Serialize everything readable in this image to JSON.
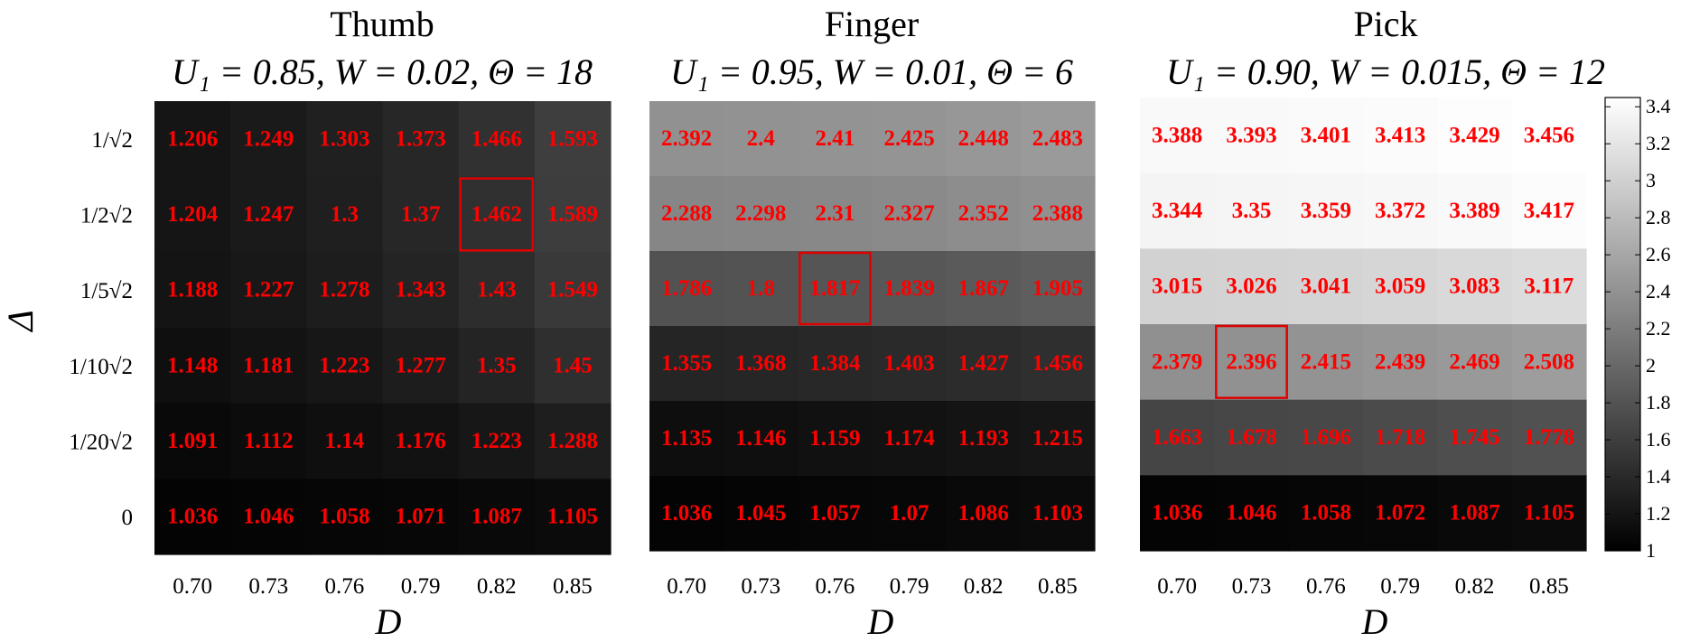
{
  "chart_data": [
    {
      "type": "heatmap",
      "title": "Thumb",
      "subtitle": "U₁ = 0.85, W = 0.02, Θ = 18",
      "xlabel": "D",
      "ylabel": "Δ",
      "x": [
        "0.70",
        "0.73",
        "0.76",
        "0.79",
        "0.82",
        "0.85"
      ],
      "y": [
        "1/√2",
        "1/2√2",
        "1/5√2",
        "1/10√2",
        "1/20√2",
        "0"
      ],
      "values": [
        [
          1.206,
          1.249,
          1.303,
          1.373,
          1.466,
          1.593
        ],
        [
          1.204,
          1.247,
          1.3,
          1.37,
          1.462,
          1.589
        ],
        [
          1.188,
          1.227,
          1.278,
          1.343,
          1.43,
          1.549
        ],
        [
          1.148,
          1.181,
          1.223,
          1.277,
          1.35,
          1.45
        ],
        [
          1.091,
          1.112,
          1.14,
          1.176,
          1.223,
          1.288
        ],
        [
          1.036,
          1.046,
          1.058,
          1.071,
          1.087,
          1.105
        ]
      ],
      "value_labels": [
        [
          "1.206",
          "1.249",
          "1.303",
          "1.373",
          "1.466",
          "1.593"
        ],
        [
          "1.204",
          "1.247",
          "1.3",
          "1.37",
          "1.462",
          "1.589"
        ],
        [
          "1.188",
          "1.227",
          "1.278",
          "1.343",
          "1.43",
          "1.549"
        ],
        [
          "1.148",
          "1.181",
          "1.223",
          "1.277",
          "1.35",
          "1.45"
        ],
        [
          "1.091",
          "1.112",
          "1.14",
          "1.176",
          "1.223",
          "1.288"
        ],
        [
          "1.036",
          "1.046",
          "1.058",
          "1.071",
          "1.087",
          "1.105"
        ]
      ],
      "highlight": {
        "row": 1,
        "col": 4
      }
    },
    {
      "type": "heatmap",
      "title": "Finger",
      "subtitle": "U₁ = 0.95, W = 0.01, Θ = 6",
      "xlabel": "D",
      "ylabel": "",
      "x": [
        "0.70",
        "0.73",
        "0.76",
        "0.79",
        "0.82",
        "0.85"
      ],
      "y": [],
      "values": [
        [
          2.392,
          2.4,
          2.41,
          2.425,
          2.448,
          2.483
        ],
        [
          2.288,
          2.298,
          2.31,
          2.327,
          2.352,
          2.388
        ],
        [
          1.786,
          1.8,
          1.817,
          1.839,
          1.867,
          1.905
        ],
        [
          1.355,
          1.368,
          1.384,
          1.403,
          1.427,
          1.456
        ],
        [
          1.135,
          1.146,
          1.159,
          1.174,
          1.193,
          1.215
        ],
        [
          1.036,
          1.045,
          1.057,
          1.07,
          1.086,
          1.103
        ]
      ],
      "value_labels": [
        [
          "2.392",
          "2.4",
          "2.41",
          "2.425",
          "2.448",
          "2.483"
        ],
        [
          "2.288",
          "2.298",
          "2.31",
          "2.327",
          "2.352",
          "2.388"
        ],
        [
          "1.786",
          "1.8",
          "1.817",
          "1.839",
          "1.867",
          "1.905"
        ],
        [
          "1.355",
          "1.368",
          "1.384",
          "1.403",
          "1.427",
          "1.456"
        ],
        [
          "1.135",
          "1.146",
          "1.159",
          "1.174",
          "1.193",
          "1.215"
        ],
        [
          "1.036",
          "1.045",
          "1.057",
          "1.07",
          "1.086",
          "1.103"
        ]
      ],
      "highlight": {
        "row": 2,
        "col": 2
      }
    },
    {
      "type": "heatmap",
      "title": "Pick",
      "subtitle": "U₁ = 0.90, W = 0.015, Θ = 12",
      "xlabel": "D",
      "ylabel": "",
      "x": [
        "0.70",
        "0.73",
        "0.76",
        "0.79",
        "0.82",
        "0.85"
      ],
      "y": [],
      "values": [
        [
          3.388,
          3.393,
          3.401,
          3.413,
          3.429,
          3.456
        ],
        [
          3.344,
          3.35,
          3.359,
          3.372,
          3.389,
          3.417
        ],
        [
          3.015,
          3.026,
          3.041,
          3.059,
          3.083,
          3.117
        ],
        [
          2.379,
          2.396,
          2.415,
          2.439,
          2.469,
          2.508
        ],
        [
          1.663,
          1.678,
          1.696,
          1.718,
          1.745,
          1.778
        ],
        [
          1.036,
          1.046,
          1.058,
          1.072,
          1.087,
          1.105
        ]
      ],
      "value_labels": [
        [
          "3.388",
          "3.393",
          "3.401",
          "3.413",
          "3.429",
          "3.456"
        ],
        [
          "3.344",
          "3.35",
          "3.359",
          "3.372",
          "3.389",
          "3.417"
        ],
        [
          "3.015",
          "3.026",
          "3.041",
          "3.059",
          "3.083",
          "3.117"
        ],
        [
          "2.379",
          "2.396",
          "2.415",
          "2.439",
          "2.469",
          "2.508"
        ],
        [
          "1.663",
          "1.678",
          "1.696",
          "1.718",
          "1.745",
          "1.778"
        ],
        [
          "1.036",
          "1.046",
          "1.058",
          "1.072",
          "1.087",
          "1.105"
        ]
      ],
      "highlight": {
        "row": 3,
        "col": 1
      }
    }
  ],
  "colorbar": {
    "min": 1,
    "max": 3.45,
    "ticks": [
      1,
      1.2,
      1.4,
      1.6,
      1.8,
      2,
      2.2,
      2.4,
      2.6,
      2.8,
      3,
      3.2,
      3.4
    ],
    "tick_labels": [
      "1",
      "1.2",
      "1.4",
      "1.6",
      "1.8",
      "2",
      "2.2",
      "2.4",
      "2.6",
      "2.8",
      "3",
      "3.2",
      "3.4"
    ],
    "colormap": "gray"
  },
  "colors": {
    "cell_text": "#ff0000",
    "highlight_box": "#e00000"
  }
}
